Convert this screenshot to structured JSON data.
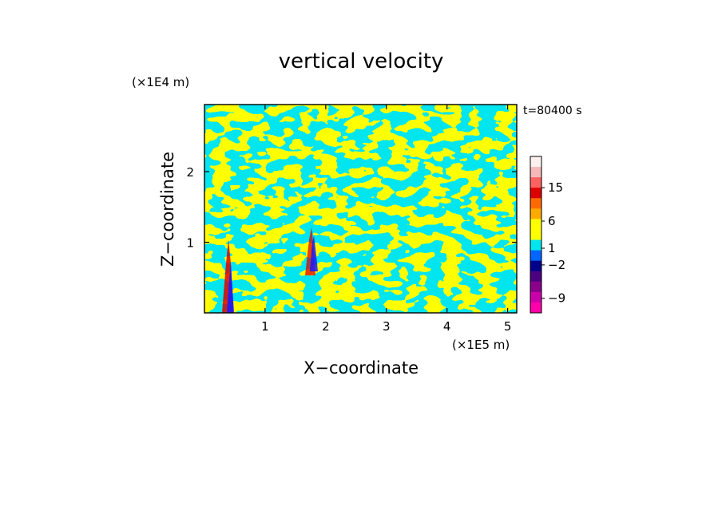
{
  "chart_data": {
    "type": "heatmap",
    "title": "vertical velocity",
    "xlabel": "X−coordinate",
    "ylabel": "Z−coordinate",
    "x_unit_label": "(×1E5 m)",
    "y_unit_label": "(×1E4 m)",
    "time_label": "t=80400 s",
    "xlim": [
      0,
      5.15
    ],
    "ylim": [
      0,
      2.95
    ],
    "x_ticks": [
      1,
      2,
      3,
      4,
      5
    ],
    "y_ticks": [
      1,
      2
    ],
    "x_tick_labels": [
      "1",
      "2",
      "3",
      "4",
      "5"
    ],
    "y_tick_labels": [
      "1",
      "2"
    ],
    "dominant_colors": {
      "positive_weak": "#ffff00",
      "negative_weak": "#00e5ee",
      "strong_positive": "#ff0000",
      "strong_negative": "#1a1aff"
    },
    "colorbar": {
      "tick_labels": [
        "15",
        "6",
        "1",
        "−2",
        "−9"
      ],
      "colors": [
        "#fff0f0",
        "#f5b8b8",
        "#ff6060",
        "#dd0000",
        "#ff6a00",
        "#ffaa00",
        "#ffff00",
        "#ffff00",
        "#00e5ee",
        "#0066ff",
        "#00008b",
        "#4b0082",
        "#8b008b",
        "#cc00aa",
        "#ff00aa"
      ]
    }
  }
}
